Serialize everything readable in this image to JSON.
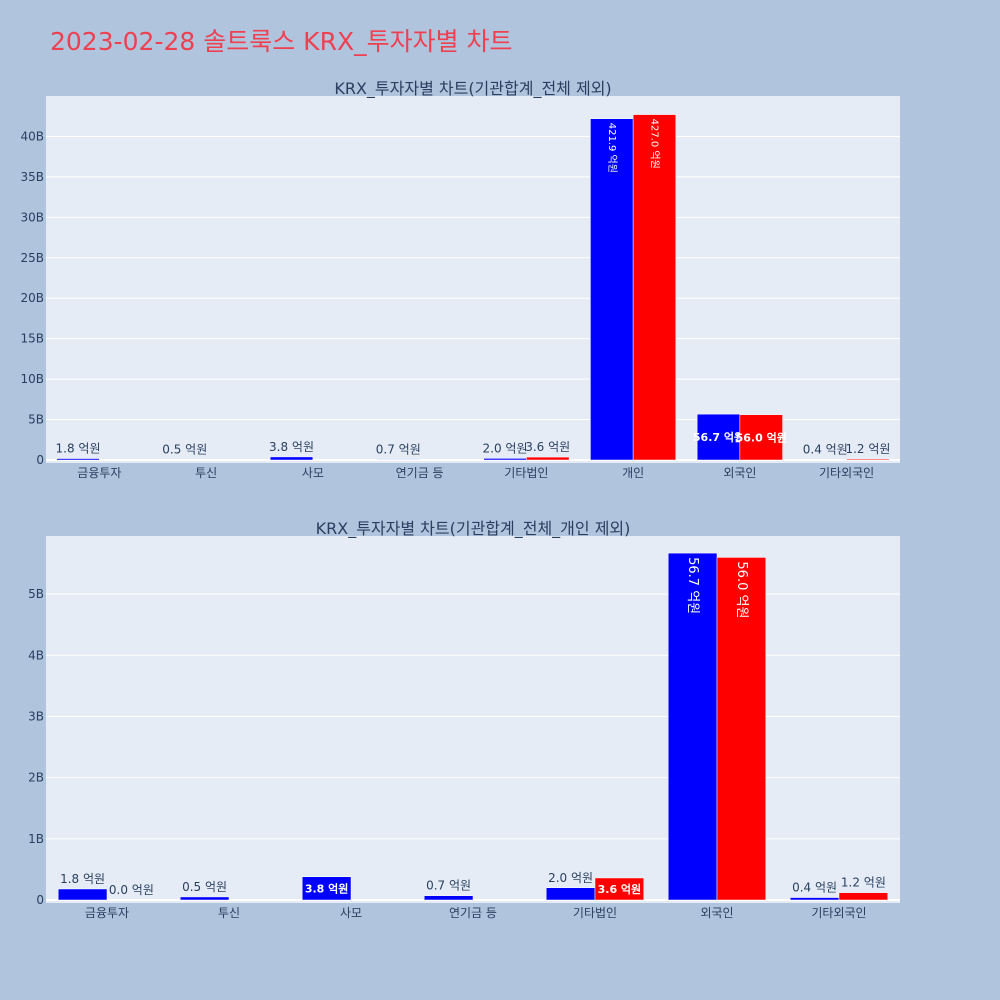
{
  "page": {
    "title": "2023-02-28 솔트룩스 KRX_투자자별 차트"
  },
  "colors": {
    "background": "#b0c4de",
    "plot_bg": "#e5ecf6",
    "grid": "#ffffff",
    "title": "#ef4050",
    "text": "#2a3f5f",
    "sell": "#0000ff",
    "buy": "#ff0000"
  },
  "chart_data": [
    {
      "type": "bar",
      "title": "KRX_투자자별 차트(기관합계_전체 제외)",
      "categories": [
        "금융투자",
        "투신",
        "사모",
        "연기금 등",
        "기타법인",
        "개인",
        "외국인",
        "기타외국인"
      ],
      "series": [
        {
          "color": "#0000ff",
          "values": [
            180000000,
            50000000,
            380000000,
            70000000,
            200000000,
            42190000000,
            5670000000,
            40000000
          ],
          "labels": [
            "1.8 억원",
            "0.5 억원",
            "3.8 억원",
            "0.7 억원",
            "2.0 억원",
            "421.9 억원",
            "56.7 억원",
            "0.4 억원"
          ]
        },
        {
          "color": "#ff0000",
          "values": [
            0,
            0,
            0,
            0,
            360000000,
            42700000000,
            5600000000,
            120000000
          ],
          "labels": [
            "",
            "",
            "",
            "",
            "3.6 억원",
            "427.0 억원",
            "56.0 억원",
            "1.2 억원"
          ]
        }
      ],
      "ylim": [
        0,
        45000000000
      ],
      "yticks": [
        0,
        5000000000,
        10000000000,
        15000000000,
        20000000000,
        25000000000,
        30000000000,
        35000000000,
        40000000000
      ],
      "ytick_labels": [
        "0",
        "5B",
        "10B",
        "15B",
        "20B",
        "25B",
        "30B",
        "35B",
        "40B"
      ],
      "grid": true
    },
    {
      "type": "bar",
      "title": "KRX_투자자별 차트(기관합계_전체_개인 제외)",
      "categories": [
        "금융투자",
        "투신",
        "사모",
        "연기금 등",
        "기타법인",
        "외국인",
        "기타외국인"
      ],
      "series": [
        {
          "color": "#0000ff",
          "values": [
            180000000,
            50000000,
            380000000,
            70000000,
            200000000,
            5670000000,
            40000000
          ],
          "labels": [
            "1.8 억원",
            "0.5 억원",
            "3.8 억원",
            "0.7 억원",
            "2.0 억원",
            "56.7 억원",
            "0.4 억원"
          ]
        },
        {
          "color": "#ff0000",
          "values": [
            0,
            0,
            0,
            0,
            360000000,
            5600000000,
            120000000
          ],
          "labels": [
            "0.0 억원",
            "",
            "",
            "",
            "3.6 억원",
            "56.0 억원",
            "1.2 억원"
          ]
        }
      ],
      "ylim": [
        0,
        5950000000
      ],
      "yticks": [
        0,
        1000000000,
        2000000000,
        3000000000,
        4000000000,
        5000000000
      ],
      "ytick_labels": [
        "0",
        "1B",
        "2B",
        "3B",
        "4B",
        "5B"
      ],
      "grid": true
    }
  ]
}
